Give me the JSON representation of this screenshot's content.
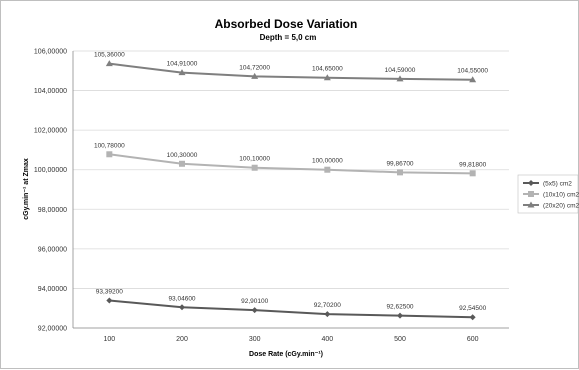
{
  "chart_data": {
    "type": "line",
    "title": "Absorbed Dose Variation",
    "subtitle": "Depth = 5,0 cm",
    "xlabel": "Dose Rate (cGy.min⁻¹)",
    "ylabel": "cGy.min⁻¹ at Zmax",
    "categories": [
      "100",
      "200",
      "300",
      "400",
      "500",
      "600"
    ],
    "ylim": [
      92,
      106
    ],
    "ytick_labels": [
      "92,00000",
      "94,00000",
      "96,00000",
      "98,00000",
      "100,00000",
      "102,00000",
      "104,00000",
      "106,00000"
    ],
    "ytick_values": [
      92,
      94,
      96,
      98,
      100,
      102,
      104,
      106
    ],
    "grid": true,
    "legend_position": "right",
    "series": [
      {
        "name": "(5x5) cm2",
        "marker": "diamond",
        "color": "#595959",
        "values": [
          93.392,
          93.046,
          92.901,
          92.702,
          92.625,
          92.545
        ],
        "labels": [
          "93,39200",
          "93,04600",
          "92,90100",
          "92,70200",
          "92,62500",
          "92,54500"
        ]
      },
      {
        "name": "(10x10) cm2",
        "marker": "square",
        "color": "#b3b3b3",
        "values": [
          100.78,
          100.3,
          100.1,
          100.0,
          99.867,
          99.818
        ],
        "labels": [
          "100,78000",
          "100,30000",
          "100,10000",
          "100,00000",
          "99,86700",
          "99,81800"
        ]
      },
      {
        "name": "(20x20) cm2",
        "marker": "triangle",
        "color": "#7f7f7f",
        "values": [
          105.36,
          104.91,
          104.72,
          104.65,
          104.59,
          104.55
        ],
        "labels": [
          "105,36000",
          "104,91000",
          "104,72000",
          "104,65000",
          "104,59000",
          "104,55000"
        ]
      }
    ]
  }
}
